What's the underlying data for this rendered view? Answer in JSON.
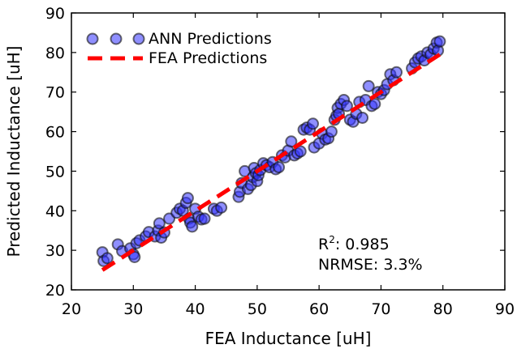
{
  "chart_data": {
    "type": "scatter",
    "xlabel": "FEA Inductance [uH]",
    "ylabel": "Predicted Inductance [uH]",
    "xlim": [
      20,
      90
    ],
    "ylim": [
      20,
      90
    ],
    "xticks": [
      "20",
      "30",
      "40",
      "50",
      "60",
      "70",
      "80",
      "90"
    ],
    "yticks": [
      "20",
      "30",
      "40",
      "50",
      "60",
      "70",
      "80",
      "90"
    ],
    "grid": false,
    "legend_position": "top-left",
    "series": [
      {
        "name": "ANN Predictions",
        "kind": "scatter",
        "color": "#3333ff",
        "points": [
          [
            25.0,
            29.5
          ],
          [
            25.2,
            27.3
          ],
          [
            25.8,
            28.0
          ],
          [
            27.5,
            31.5
          ],
          [
            28.2,
            29.8
          ],
          [
            29.5,
            30.5
          ],
          [
            30.0,
            29.0
          ],
          [
            30.2,
            28.3
          ],
          [
            30.5,
            31.8
          ],
          [
            31.0,
            32.5
          ],
          [
            32.0,
            33.5
          ],
          [
            32.5,
            34.6
          ],
          [
            33.5,
            33.5
          ],
          [
            34.0,
            35.0
          ],
          [
            34.2,
            36.8
          ],
          [
            34.5,
            33.2
          ],
          [
            35.0,
            34.5
          ],
          [
            35.8,
            38.0
          ],
          [
            37.0,
            39.5
          ],
          [
            37.5,
            40.5
          ],
          [
            38.0,
            40.0
          ],
          [
            38.5,
            42.0
          ],
          [
            38.8,
            43.2
          ],
          [
            39.0,
            38.0
          ],
          [
            39.2,
            37.0
          ],
          [
            39.5,
            36.0
          ],
          [
            40.0,
            40.5
          ],
          [
            40.5,
            38.5
          ],
          [
            41.0,
            37.8
          ],
          [
            41.5,
            38.0
          ],
          [
            43.0,
            40.5
          ],
          [
            43.5,
            40.0
          ],
          [
            44.2,
            40.8
          ],
          [
            47.0,
            43.5
          ],
          [
            47.2,
            44.8
          ],
          [
            47.5,
            47.0
          ],
          [
            48.0,
            50.0
          ],
          [
            48.5,
            45.5
          ],
          [
            49.0,
            46.5
          ],
          [
            49.3,
            48.5
          ],
          [
            49.5,
            50.8
          ],
          [
            49.8,
            49.5
          ],
          [
            50.0,
            47.5
          ],
          [
            50.2,
            49.0
          ],
          [
            50.5,
            50.3
          ],
          [
            51.0,
            52.0
          ],
          [
            51.5,
            51.5
          ],
          [
            52.0,
            51.0
          ],
          [
            52.5,
            52.3
          ],
          [
            53.0,
            50.5
          ],
          [
            53.5,
            51.0
          ],
          [
            54.0,
            54.0
          ],
          [
            54.5,
            53.5
          ],
          [
            55.0,
            55.2
          ],
          [
            55.5,
            57.5
          ],
          [
            56.0,
            54.0
          ],
          [
            56.5,
            54.5
          ],
          [
            57.0,
            55.0
          ],
          [
            57.5,
            60.5
          ],
          [
            58.0,
            61.0
          ],
          [
            58.5,
            60.5
          ],
          [
            59.0,
            62.0
          ],
          [
            59.2,
            56.0
          ],
          [
            60.0,
            57.0
          ],
          [
            60.5,
            59.5
          ],
          [
            61.0,
            58.0
          ],
          [
            61.5,
            58.3
          ],
          [
            62.0,
            60.0
          ],
          [
            62.5,
            63.0
          ],
          [
            62.8,
            64.0
          ],
          [
            63.0,
            66.0
          ],
          [
            63.2,
            64.5
          ],
          [
            63.5,
            67.0
          ],
          [
            64.0,
            68.0
          ],
          [
            64.5,
            66.5
          ],
          [
            65.0,
            63.0
          ],
          [
            65.5,
            62.5
          ],
          [
            66.0,
            64.5
          ],
          [
            66.5,
            67.5
          ],
          [
            67.0,
            63.5
          ],
          [
            67.5,
            68.0
          ],
          [
            68.0,
            71.5
          ],
          [
            68.5,
            66.5
          ],
          [
            69.0,
            67.0
          ],
          [
            69.5,
            70.0
          ],
          [
            70.0,
            69.5
          ],
          [
            70.5,
            70.5
          ],
          [
            71.0,
            72.0
          ],
          [
            71.5,
            74.5
          ],
          [
            72.0,
            73.0
          ],
          [
            72.5,
            75.0
          ],
          [
            75.0,
            76.0
          ],
          [
            75.5,
            77.5
          ],
          [
            76.0,
            78.5
          ],
          [
            76.5,
            79.0
          ],
          [
            77.0,
            78.0
          ],
          [
            77.5,
            80.0
          ],
          [
            78.0,
            79.5
          ],
          [
            78.5,
            81.0
          ],
          [
            79.0,
            82.5
          ],
          [
            79.2,
            80.5
          ],
          [
            79.5,
            82.8
          ]
        ]
      },
      {
        "name": "FEA Predictions",
        "kind": "dashed-line",
        "color": "#ff0000",
        "points": [
          [
            25.0,
            25.0
          ],
          [
            79.5,
            79.5
          ]
        ]
      }
    ],
    "annotations": {
      "r2_base": "R",
      "r2_sup": "2",
      "r2_value": ": 0.985",
      "nrmse": "NRMSE: 3.3%"
    }
  }
}
